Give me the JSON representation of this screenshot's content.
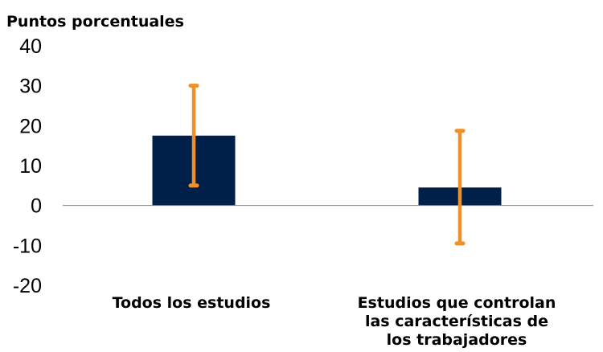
{
  "chart_data": {
    "type": "bar",
    "ylabel": "Puntos porcentuales",
    "categories": [
      [
        "Todos los estudios"
      ],
      [
        "Estudios que controlan",
        "las características de",
        "los trabajadores"
      ]
    ],
    "values": [
      17.5,
      4.5
    ],
    "error_bars": [
      {
        "low": 5,
        "high": 30
      },
      {
        "low": -9.5,
        "high": 18.7
      }
    ],
    "yticks": [
      40,
      30,
      20,
      10,
      0,
      -10,
      -20
    ],
    "ylim": [
      -20,
      40
    ],
    "grid": false,
    "legend": "none",
    "colors": {
      "bar": "#00204a",
      "error_bar": "#f0902a",
      "axis": "#7f7f7f"
    }
  }
}
